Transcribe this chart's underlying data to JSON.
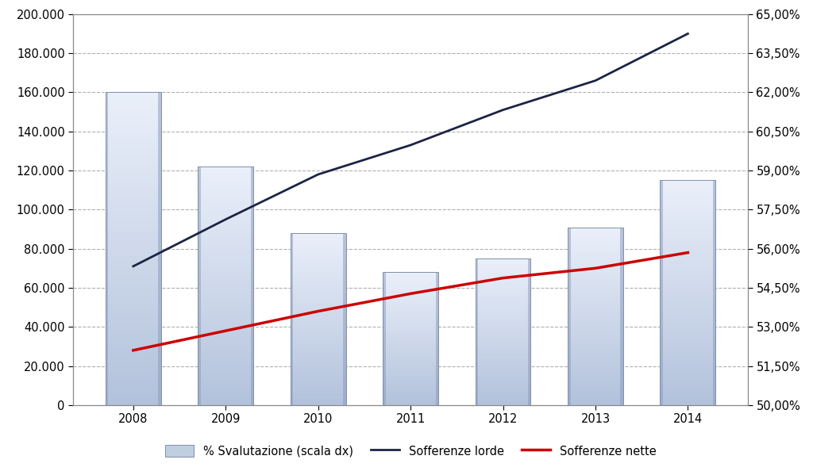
{
  "years": [
    2008,
    2009,
    2010,
    2011,
    2012,
    2013,
    2014
  ],
  "bar_values": [
    160000,
    122000,
    88000,
    68000,
    75000,
    91000,
    115000
  ],
  "sofferenze_lorde": [
    71000,
    95000,
    118000,
    133000,
    151000,
    166000,
    190000
  ],
  "sofferenze_nette": [
    28000,
    38000,
    48000,
    57000,
    65000,
    70000,
    78000
  ],
  "ylim_left": [
    0,
    200000
  ],
  "ylim_right": [
    0.5,
    0.65
  ],
  "yticks_left": [
    0,
    20000,
    40000,
    60000,
    80000,
    100000,
    120000,
    140000,
    160000,
    180000,
    200000
  ],
  "yticks_right": [
    0.5,
    0.515,
    0.53,
    0.545,
    0.56,
    0.575,
    0.59,
    0.605,
    0.62,
    0.635,
    0.65
  ],
  "ytick_right_labels": [
    "50,00%",
    "51,50%",
    "53,00%",
    "54,50%",
    "56,00%",
    "57,50%",
    "59,00%",
    "60,50%",
    "62,00%",
    "63,50%",
    "65,00%"
  ],
  "line_lorde_color": "#1c2443",
  "line_nette_color": "#cc0000",
  "background_color": "#ffffff",
  "legend_labels": [
    "% Svalutazione (scala dx)",
    "Sofferenze lorde",
    "Sofferenze nette"
  ],
  "grid_color": "#b0b0b0",
  "tick_label_fontsize": 10.5,
  "legend_fontsize": 10.5,
  "bar_width": 0.6
}
